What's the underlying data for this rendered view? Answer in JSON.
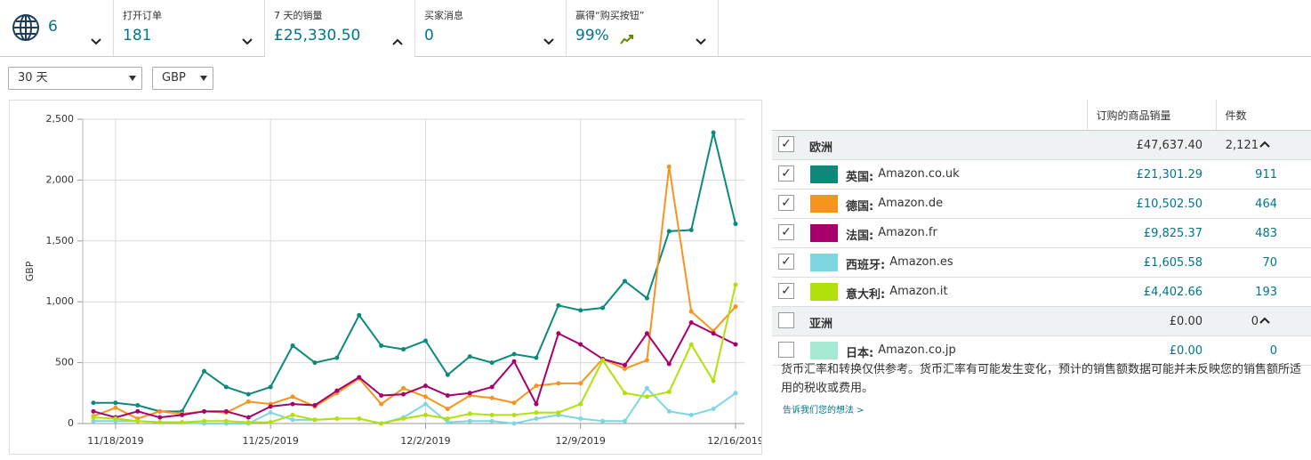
{
  "header": {
    "tabs": [
      {
        "value": "6"
      },
      {
        "label": "打开订单",
        "value": "181"
      },
      {
        "label": "7 天的销量",
        "value": "£25,330.50"
      },
      {
        "label": "买家消息",
        "value": "0"
      },
      {
        "label": "赢得“购买按钮”",
        "value": "99%"
      }
    ]
  },
  "filters": {
    "period": "30 天",
    "currency": "GBP"
  },
  "chart_data": {
    "type": "line",
    "ylabel": "GBP",
    "x": [
      "11/17/2019",
      "11/18/2019",
      "11/19/2019",
      "11/20/2019",
      "11/21/2019",
      "11/22/2019",
      "11/23/2019",
      "11/24/2019",
      "11/25/2019",
      "11/26/2019",
      "11/27/2019",
      "11/28/2019",
      "11/29/2019",
      "11/30/2019",
      "12/1/2019",
      "12/2/2019",
      "12/3/2019",
      "12/4/2019",
      "12/5/2019",
      "12/6/2019",
      "12/7/2019",
      "12/8/2019",
      "12/9/2019",
      "12/10/2019",
      "12/11/2019",
      "12/12/2019",
      "12/13/2019",
      "12/14/2019",
      "12/15/2019",
      "12/16/2019"
    ],
    "xticks": [
      "11/18/2019",
      "11/25/2019",
      "12/2/2019",
      "12/9/2019",
      "12/16/2019"
    ],
    "ylim": [
      0,
      2500
    ],
    "yticks": [
      0,
      500,
      {
        "value": 1000,
        "label": "1,000"
      },
      {
        "value": 1500,
        "label": "1,500"
      },
      {
        "value": 2000,
        "label": "2,000"
      },
      {
        "value": 2500,
        "label": "2,500"
      }
    ],
    "grid": true,
    "series": [
      {
        "color": "#0b8a7a",
        "values": [
          170,
          170,
          150,
          100,
          100,
          430,
          300,
          240,
          300,
          640,
          500,
          540,
          890,
          640,
          610,
          680,
          400,
          550,
          500,
          570,
          540,
          970,
          930,
          950,
          1170,
          1030,
          1580,
          1590,
          2390,
          1640
        ]
      },
      {
        "color": "#f7941d",
        "values": [
          60,
          130,
          40,
          100,
          80,
          100,
          90,
          180,
          160,
          220,
          140,
          250,
          370,
          160,
          290,
          220,
          120,
          230,
          210,
          170,
          310,
          330,
          330,
          530,
          450,
          520,
          2110,
          920,
          760,
          960
        ]
      },
      {
        "color": "#a8006b",
        "values": [
          100,
          50,
          100,
          50,
          70,
          100,
          100,
          50,
          140,
          160,
          150,
          270,
          380,
          230,
          240,
          310,
          230,
          250,
          300,
          510,
          160,
          740,
          650,
          530,
          480,
          740,
          490,
          830,
          740,
          650
        ]
      },
      {
        "color": "#7fd6e3",
        "values": [
          20,
          20,
          20,
          10,
          10,
          0,
          0,
          0,
          90,
          30,
          30,
          40,
          40,
          0,
          50,
          160,
          10,
          20,
          20,
          0,
          40,
          70,
          40,
          20,
          20,
          290,
          100,
          70,
          120,
          250
        ]
      },
      {
        "color": "#b2e00a",
        "values": [
          50,
          40,
          20,
          10,
          10,
          20,
          20,
          10,
          10,
          70,
          30,
          40,
          40,
          0,
          40,
          70,
          40,
          80,
          70,
          70,
          90,
          90,
          160,
          520,
          250,
          220,
          260,
          650,
          350,
          1140
        ]
      }
    ]
  },
  "table": {
    "columns": [
      "订购的商品销量",
      "件数"
    ],
    "rows": [
      {
        "group": true,
        "checked": true,
        "country": "欧洲",
        "sales": "£47,637.40",
        "units": "2,121"
      },
      {
        "checked": true,
        "color": "#0b8a7a",
        "country": "英国:",
        "site": "Amazon.co.uk",
        "sales": "£21,301.29",
        "units": "911"
      },
      {
        "checked": true,
        "color": "#f7941d",
        "country": "德国:",
        "site": "Amazon.de",
        "sales": "£10,502.50",
        "units": "464"
      },
      {
        "checked": true,
        "color": "#a8006b",
        "country": "法国:",
        "site": "Amazon.fr",
        "sales": "£9,825.37",
        "units": "483"
      },
      {
        "checked": true,
        "color": "#7fd6e3",
        "country": "西班牙:",
        "site": "Amazon.es",
        "sales": "£1,605.58",
        "units": "70"
      },
      {
        "checked": true,
        "color": "#b2e00a",
        "country": "意大利:",
        "site": "Amazon.it",
        "sales": "£4,402.66",
        "units": "193"
      },
      {
        "group": true,
        "checked": false,
        "country": "亚洲",
        "sales": "£0.00",
        "units": "0"
      },
      {
        "checked": false,
        "color": "#a6e9d2",
        "country": "日本:",
        "site": "Amazon.co.jp",
        "sales": "£0.00",
        "units": "0"
      }
    ]
  },
  "note": "货币汇率和转换仅供参考。货币汇率有可能发生变化，预计的销售额数据可能并未反映您的销售额所适用的税收或费用。",
  "link": "告诉我们您的想法 >"
}
